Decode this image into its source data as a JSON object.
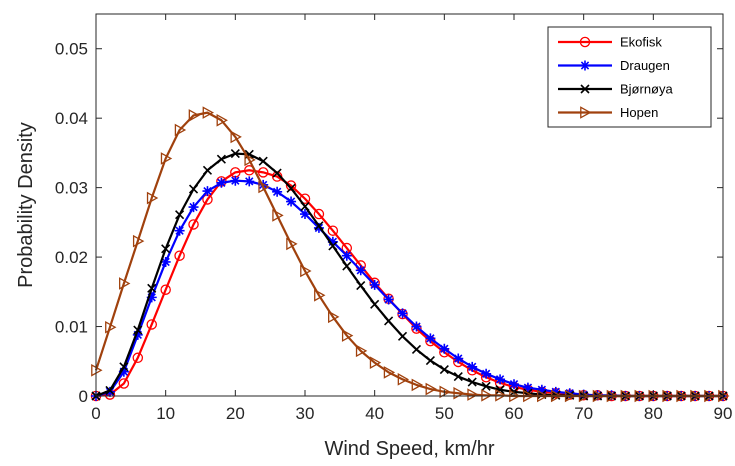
{
  "chart_data": {
    "type": "line",
    "xlabel": "Wind Speed, km/hr",
    "ylabel": "Probability Density",
    "xlim": [
      0,
      90
    ],
    "ylim": [
      0,
      0.055
    ],
    "xticks": [
      0,
      10,
      20,
      30,
      40,
      50,
      60,
      70,
      80,
      90
    ],
    "xtick_labels": [
      "0",
      "10",
      "20",
      "30",
      "40",
      "50",
      "60",
      "70",
      "80",
      "90"
    ],
    "yticks": [
      0,
      0.01,
      0.02,
      0.03,
      0.04,
      0.05
    ],
    "ytick_labels": [
      "0",
      "0.01",
      "0.02",
      "0.03",
      "0.04",
      "0.05"
    ],
    "grid": false,
    "legend_position": "top-right",
    "series": [
      {
        "name": "Ekofisk",
        "color": "#ff0000",
        "marker": "circle",
        "x": [
          0,
          2,
          4,
          6,
          8,
          10,
          12,
          14,
          16,
          18,
          20,
          22,
          24,
          26,
          28,
          30,
          32,
          34,
          36,
          38,
          40,
          42,
          44,
          46,
          48,
          50,
          52,
          54,
          56,
          58,
          60,
          62,
          64,
          66,
          68,
          70,
          72,
          74,
          76,
          78,
          80,
          82,
          84,
          86,
          88,
          90
        ],
        "y": [
          0.0,
          0.0002,
          0.0018,
          0.0055,
          0.0103,
          0.0153,
          0.0202,
          0.0247,
          0.0283,
          0.0309,
          0.0322,
          0.0325,
          0.0322,
          0.0316,
          0.0303,
          0.0284,
          0.0262,
          0.0238,
          0.0213,
          0.0188,
          0.0163,
          0.014,
          0.0118,
          0.0097,
          0.0079,
          0.0063,
          0.0049,
          0.0037,
          0.0027,
          0.0019,
          0.0013,
          0.0009,
          0.0006,
          0.0004,
          0.0002,
          0.0001,
          0.0001,
          0.0,
          0.0,
          0.0,
          0.0,
          0.0,
          0.0,
          0.0,
          0.0,
          0.0
        ]
      },
      {
        "name": "Draugen",
        "color": "#0000ff",
        "marker": "star",
        "x": [
          0,
          2,
          4,
          6,
          8,
          10,
          12,
          14,
          16,
          18,
          20,
          22,
          24,
          26,
          28,
          30,
          32,
          34,
          36,
          38,
          40,
          42,
          44,
          46,
          48,
          50,
          52,
          54,
          56,
          58,
          60,
          62,
          64,
          66,
          68,
          70,
          72,
          74,
          76,
          78,
          80,
          82,
          84,
          86,
          88,
          90
        ],
        "y": [
          0.0,
          0.0006,
          0.0035,
          0.0088,
          0.0142,
          0.0193,
          0.0238,
          0.0272,
          0.0295,
          0.0307,
          0.031,
          0.0309,
          0.0304,
          0.0294,
          0.028,
          0.0262,
          0.0242,
          0.0222,
          0.0202,
          0.0181,
          0.016,
          0.0139,
          0.0119,
          0.01,
          0.0083,
          0.0068,
          0.0054,
          0.0042,
          0.0032,
          0.0024,
          0.0017,
          0.0012,
          0.0009,
          0.0006,
          0.0004,
          0.0002,
          0.0001,
          0.0001,
          0.0,
          0.0,
          0.0,
          0.0,
          0.0,
          0.0,
          0.0,
          0.0
        ]
      },
      {
        "name": "Bjørnøya",
        "color": "#000000",
        "marker": "x",
        "x": [
          0,
          2,
          4,
          6,
          8,
          10,
          12,
          14,
          16,
          18,
          20,
          22,
          24,
          26,
          28,
          30,
          32,
          34,
          36,
          38,
          40,
          42,
          44,
          46,
          48,
          50,
          52,
          54,
          56,
          58,
          60,
          62,
          64,
          66,
          68,
          70,
          72,
          74,
          76,
          78,
          80,
          82,
          84,
          86,
          88,
          90
        ],
        "y": [
          0.0,
          0.0008,
          0.0042,
          0.0095,
          0.0155,
          0.0212,
          0.0261,
          0.0298,
          0.0325,
          0.0341,
          0.0349,
          0.0348,
          0.0338,
          0.0321,
          0.0299,
          0.0273,
          0.0245,
          0.0216,
          0.0187,
          0.0159,
          0.0132,
          0.0108,
          0.0086,
          0.0067,
          0.0051,
          0.0038,
          0.0028,
          0.002,
          0.0014,
          0.0009,
          0.0006,
          0.0004,
          0.0002,
          0.0001,
          0.0001,
          0.0,
          0.0,
          0.0,
          0.0,
          0.0,
          0.0,
          0.0,
          0.0,
          0.0,
          0.0,
          0.0
        ]
      },
      {
        "name": "Hopen",
        "color": "#a0410d",
        "marker": "triangle-right",
        "x": [
          0,
          2,
          4,
          6,
          8,
          10,
          12,
          14,
          16,
          18,
          20,
          22,
          24,
          26,
          28,
          30,
          32,
          34,
          36,
          38,
          40,
          42,
          44,
          46,
          48,
          50,
          52,
          54,
          56,
          58,
          60,
          62,
          64,
          66,
          68,
          70,
          72,
          74,
          76,
          78,
          80,
          82,
          84,
          86,
          88,
          90
        ],
        "y": [
          0.0037,
          0.0099,
          0.0162,
          0.0223,
          0.0285,
          0.0342,
          0.0383,
          0.0404,
          0.0408,
          0.0397,
          0.0373,
          0.034,
          0.0301,
          0.026,
          0.0219,
          0.018,
          0.0145,
          0.0114,
          0.0087,
          0.0065,
          0.0048,
          0.0034,
          0.0024,
          0.0016,
          0.001,
          0.0006,
          0.0004,
          0.0002,
          0.0001,
          0.0001,
          0.0,
          0.0,
          0.0,
          0.0,
          0.0,
          0.0,
          0.0,
          0.0,
          0.0,
          0.0,
          0.0,
          0.0,
          0.0,
          0.0,
          0.0,
          0.0
        ]
      }
    ]
  }
}
